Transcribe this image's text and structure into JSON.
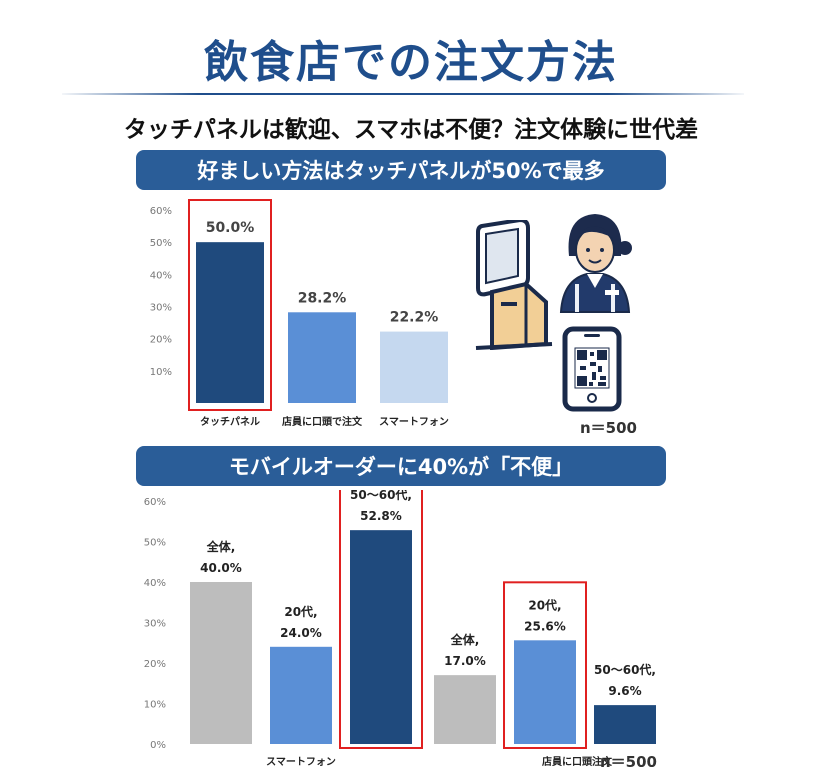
{
  "title": "飲食店での注文方法",
  "subtitle": "タッチパネルは歓迎、スマホは不便？注文体験に世代差",
  "section1": {
    "banner": "好ましい方法はタッチパネルが50%で最多",
    "n_label": "n＝500"
  },
  "section2": {
    "banner": "モバイルオーダーに40%が「不便」",
    "n_label": "n＝500"
  },
  "colors": {
    "banner": "#2a5d98",
    "dark_blue": "#1f4a7d",
    "mid_blue": "#5a8fd6",
    "light_blue": "#c5d8ef",
    "gray": "#bdbdbd",
    "highlight": "#e02020"
  },
  "chart_data": [
    {
      "type": "bar",
      "categories": [
        "タッチパネル",
        "店員に口頭で注文",
        "スマートフォン"
      ],
      "values": [
        50.0,
        28.2,
        22.2
      ],
      "data_labels": [
        "50.0%",
        "28.2%",
        "22.2%"
      ],
      "highlighted": [
        true,
        false,
        false
      ],
      "bar_colors": [
        "#1f4a7d",
        "#5a8fd6",
        "#c5d8ef"
      ],
      "yticks": [
        "10%",
        "20%",
        "30%",
        "40%",
        "50%",
        "60%"
      ],
      "ylim": [
        0,
        60
      ],
      "grid": false
    },
    {
      "type": "bar",
      "groups": [
        "スマートフォン",
        "店員に口頭注文"
      ],
      "bars": [
        {
          "group": 0,
          "label_lines": [
            "全体,",
            "40.0%"
          ],
          "value": 40.0,
          "color": "#bdbdbd",
          "highlighted": false
        },
        {
          "group": 0,
          "label_lines": [
            "20代,",
            "24.0%"
          ],
          "value": 24.0,
          "color": "#5a8fd6",
          "highlighted": false
        },
        {
          "group": 0,
          "label_lines": [
            "50～60代,",
            "52.8%"
          ],
          "value": 52.8,
          "color": "#1f4a7d",
          "highlighted": true
        },
        {
          "group": 1,
          "label_lines": [
            "全体,",
            "17.0%"
          ],
          "value": 17.0,
          "color": "#bdbdbd",
          "highlighted": false
        },
        {
          "group": 1,
          "label_lines": [
            "20代,",
            "25.6%"
          ],
          "value": 25.6,
          "color": "#5a8fd6",
          "highlighted": true
        },
        {
          "group": 1,
          "label_lines": [
            "50～60代,",
            "9.6%"
          ],
          "value": 9.6,
          "color": "#1f4a7d",
          "highlighted": false
        }
      ],
      "yticks": [
        "0%",
        "10%",
        "20%",
        "30%",
        "40%",
        "50%",
        "60%"
      ],
      "ylim": [
        0,
        60
      ],
      "grid": false
    }
  ],
  "illustrations": [
    "kiosk-terminal-icon",
    "staff-woman-icon",
    "smartphone-qr-icon"
  ]
}
